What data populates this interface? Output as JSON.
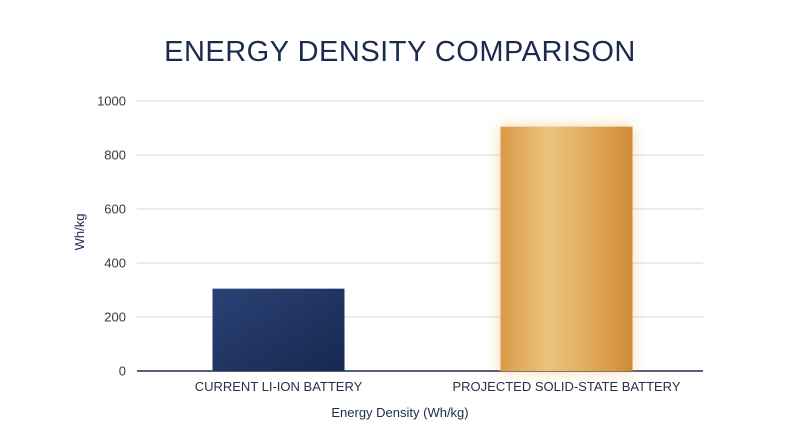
{
  "chart_data": {
    "type": "bar",
    "title": "ENERGY DENSITY COMPARISON",
    "xlabel": "Energy Density (Wh/kg)",
    "ylabel": "Wh/kg",
    "categories": [
      "CURRENT LI-ION BATTERY",
      "PROJECTED SOLID-STATE BATTERY"
    ],
    "values": [
      305,
      905
    ],
    "ylim": [
      0,
      1000
    ],
    "yticks": [
      0,
      200,
      400,
      600,
      800,
      1000
    ],
    "grid": true,
    "bar_colors": [
      "#22396b",
      "#e0a850"
    ],
    "colors": {
      "title": "#1b2a4e",
      "grid": "#d9d9d9",
      "axis": "#1b2a4e"
    }
  }
}
